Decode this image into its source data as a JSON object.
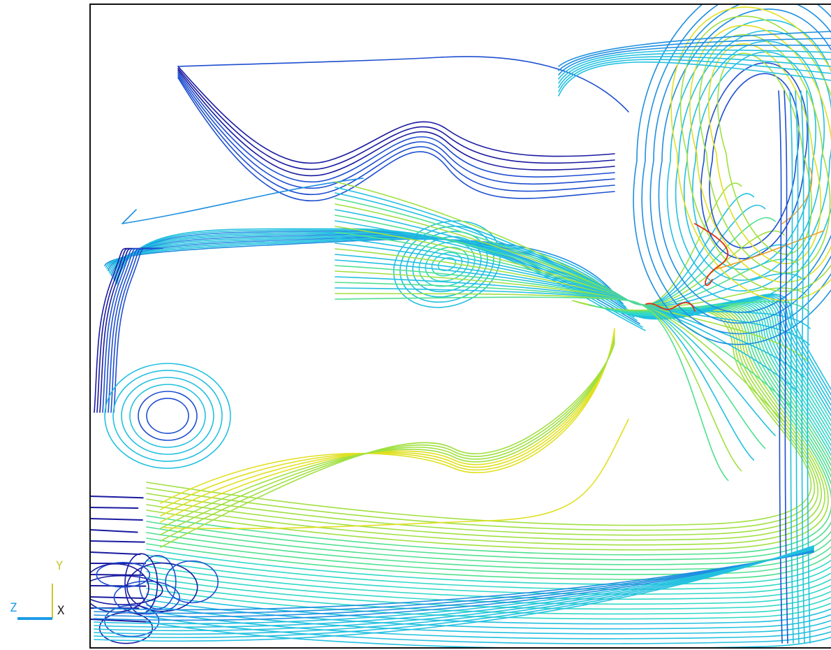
{
  "colors": {
    "background": "#ffffff",
    "frame": "#111111",
    "axis_y": "#c8c832",
    "axis_z": "#1e9be6",
    "axis_x": "#202020",
    "palette": [
      "#1a1aa0",
      "#1e4fd0",
      "#1e8fe0",
      "#22c0e0",
      "#30d8c8",
      "#50e090",
      "#a0e040",
      "#e0e020",
      "#f0a020",
      "#e03010"
    ]
  },
  "view_triad": {
    "y_label": "Y",
    "z_label": "Z",
    "x_label": "X"
  },
  "plot": {
    "type": "streamlines",
    "colormap": "jet"
  }
}
